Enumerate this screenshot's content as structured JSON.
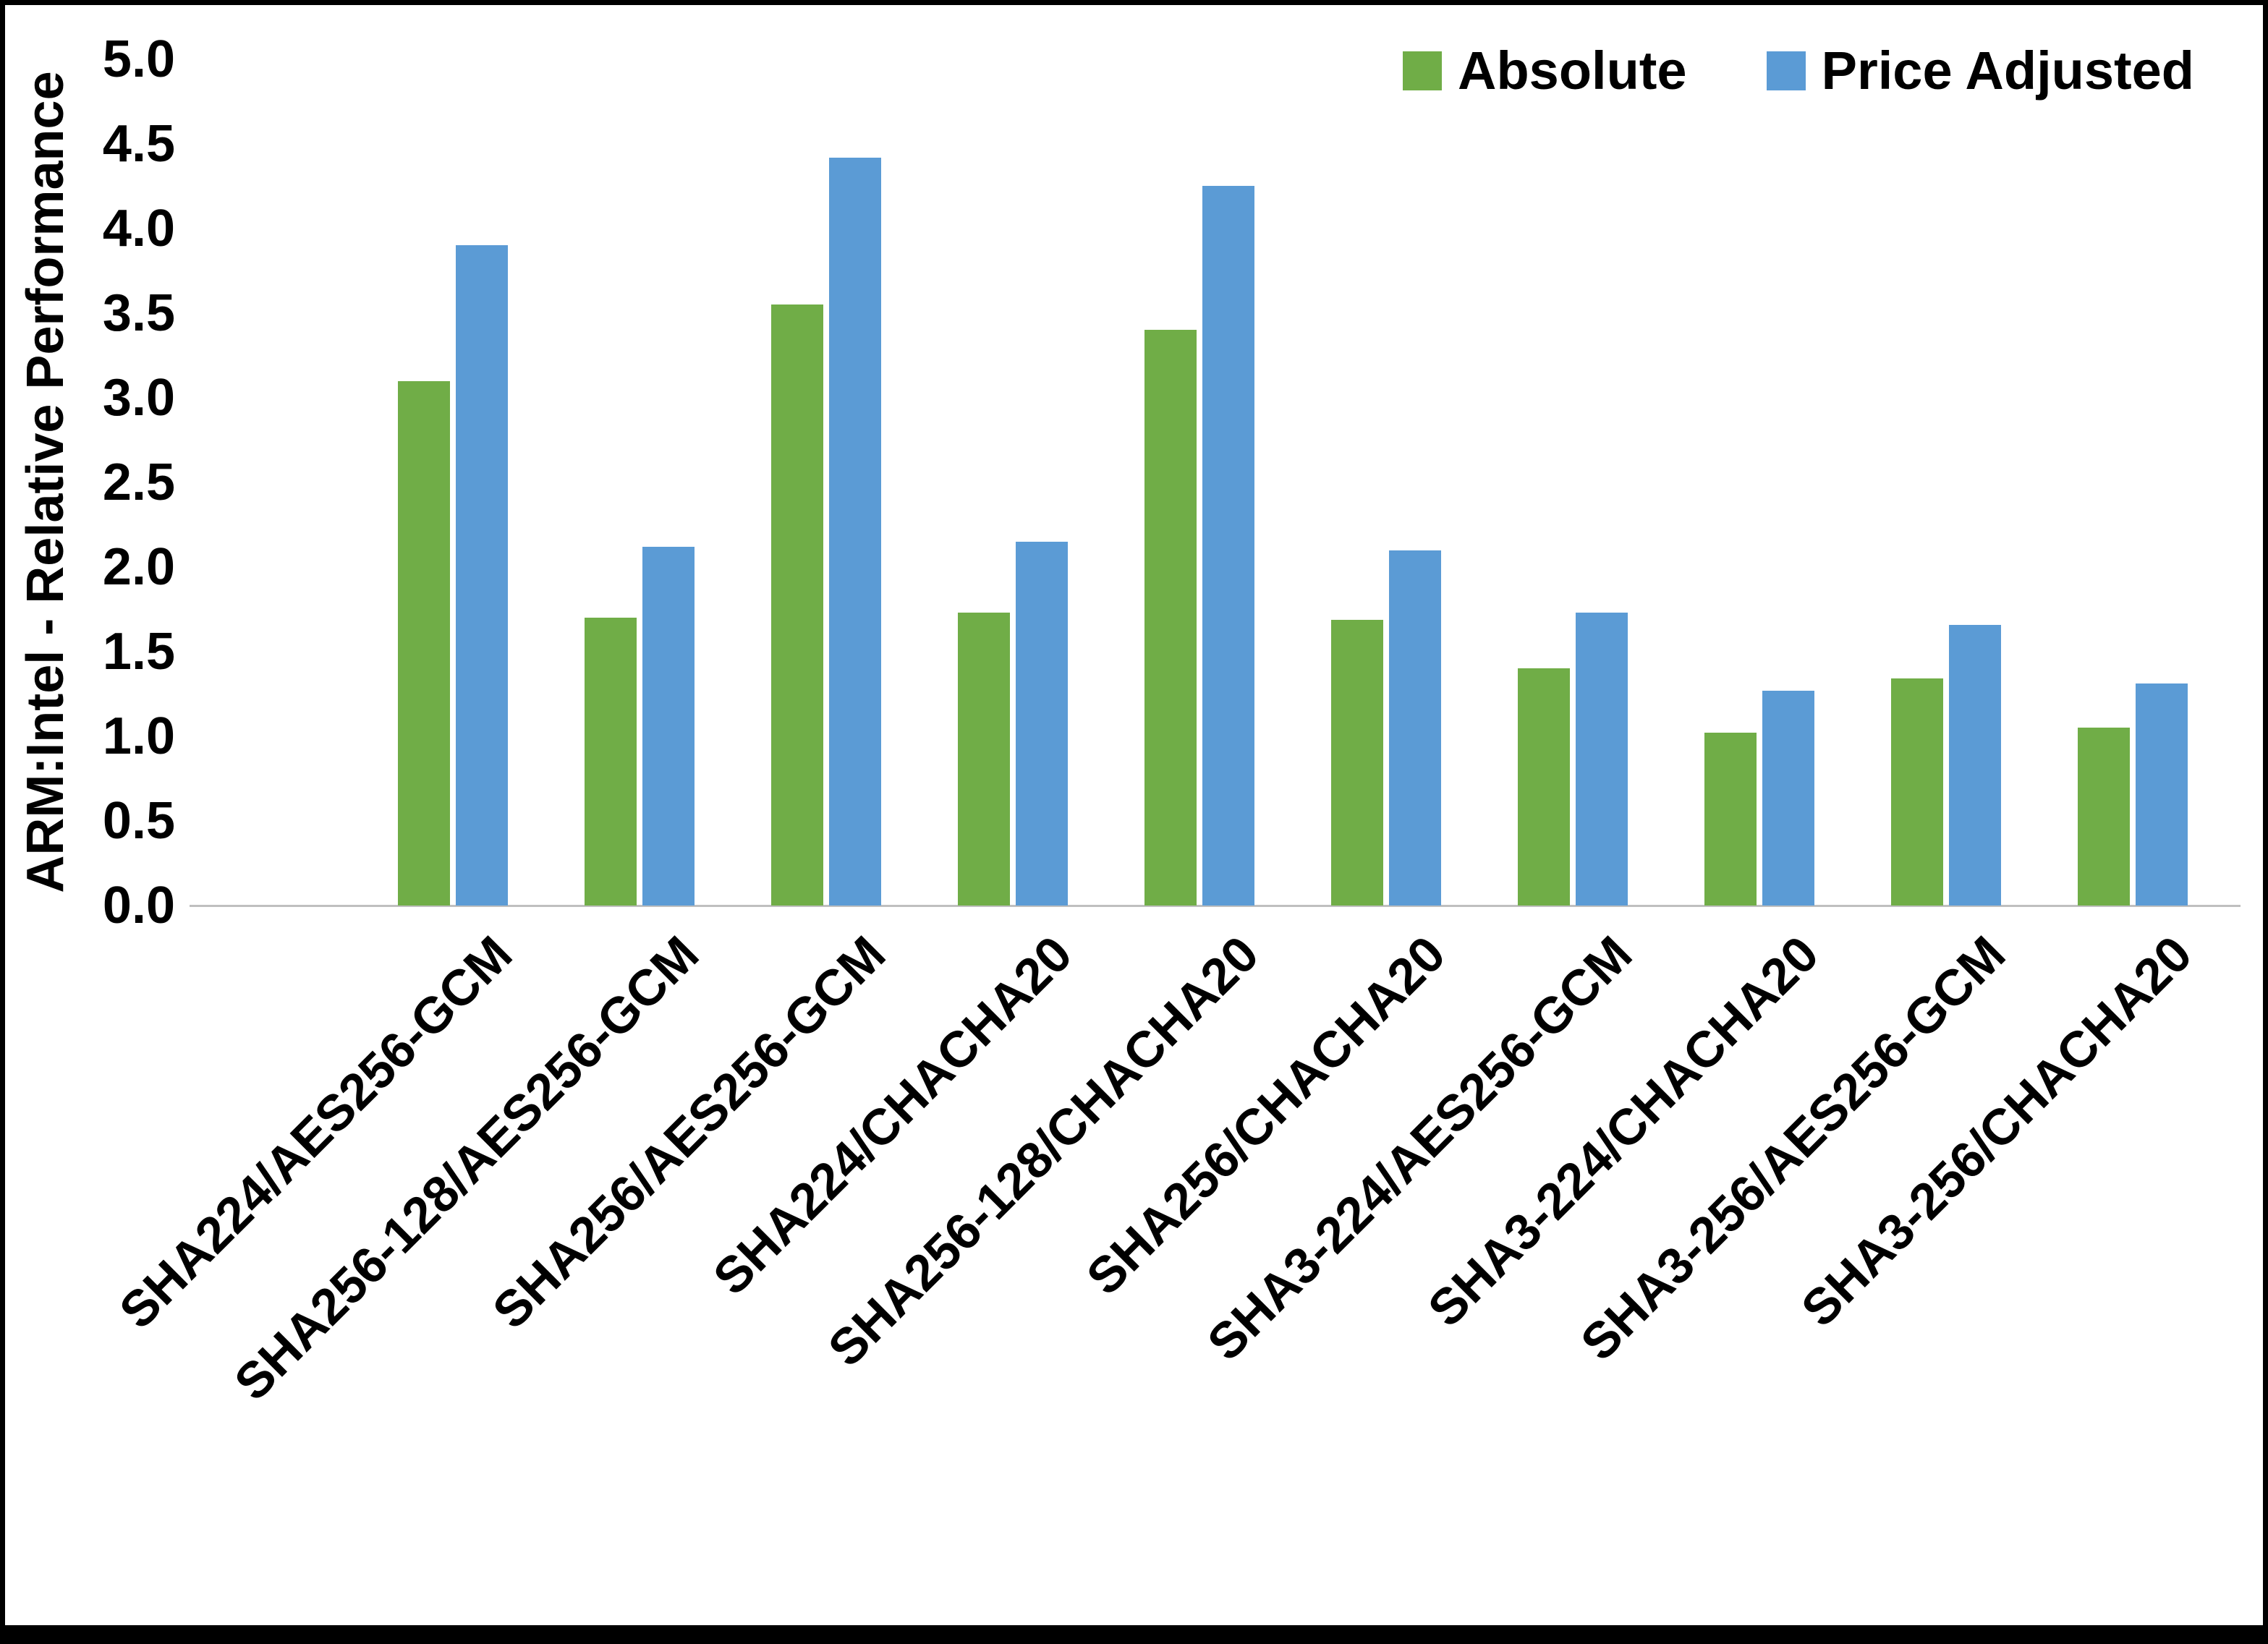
{
  "chart_data": {
    "type": "bar",
    "title": "",
    "xlabel": "",
    "ylabel": "ARM:Intel - Relative Performance",
    "ylim": [
      0,
      5
    ],
    "ytick_step": 0.5,
    "yticks": [
      "0.0",
      "0.5",
      "1.0",
      "1.5",
      "2.0",
      "2.5",
      "3.0",
      "3.5",
      "4.0",
      "4.5",
      "5.0"
    ],
    "grid": false,
    "legend_position": "top-right",
    "categories": [
      "SHA224/AES256-GCM",
      "SHA256-128/AES256-GCM",
      "SHA256/AES256-GCM",
      "SHA224/CHACHA20",
      "SHA256-128/CHACHA20",
      "SHA256/CHACHA20",
      "SHA3-224/AES256-GCM",
      "SHA3-224/CHACHA20",
      "SHA3-256/AES256-GCM",
      "SHA3-256/CHACHA20"
    ],
    "series": [
      {
        "name": "Absolute",
        "color": "#70AD47",
        "values": [
          3.1,
          1.7,
          3.55,
          1.73,
          3.4,
          1.69,
          1.4,
          1.02,
          1.34,
          1.05
        ]
      },
      {
        "name": "Price Adjusted",
        "color": "#5B9BD5",
        "values": [
          3.9,
          2.12,
          4.42,
          2.15,
          4.25,
          2.1,
          1.73,
          1.27,
          1.66,
          1.31
        ]
      }
    ],
    "colors": {
      "axis_line": "#BFBFBF",
      "text": "#000000",
      "frame_border": "#000000",
      "background": "#FFFFFF"
    }
  }
}
